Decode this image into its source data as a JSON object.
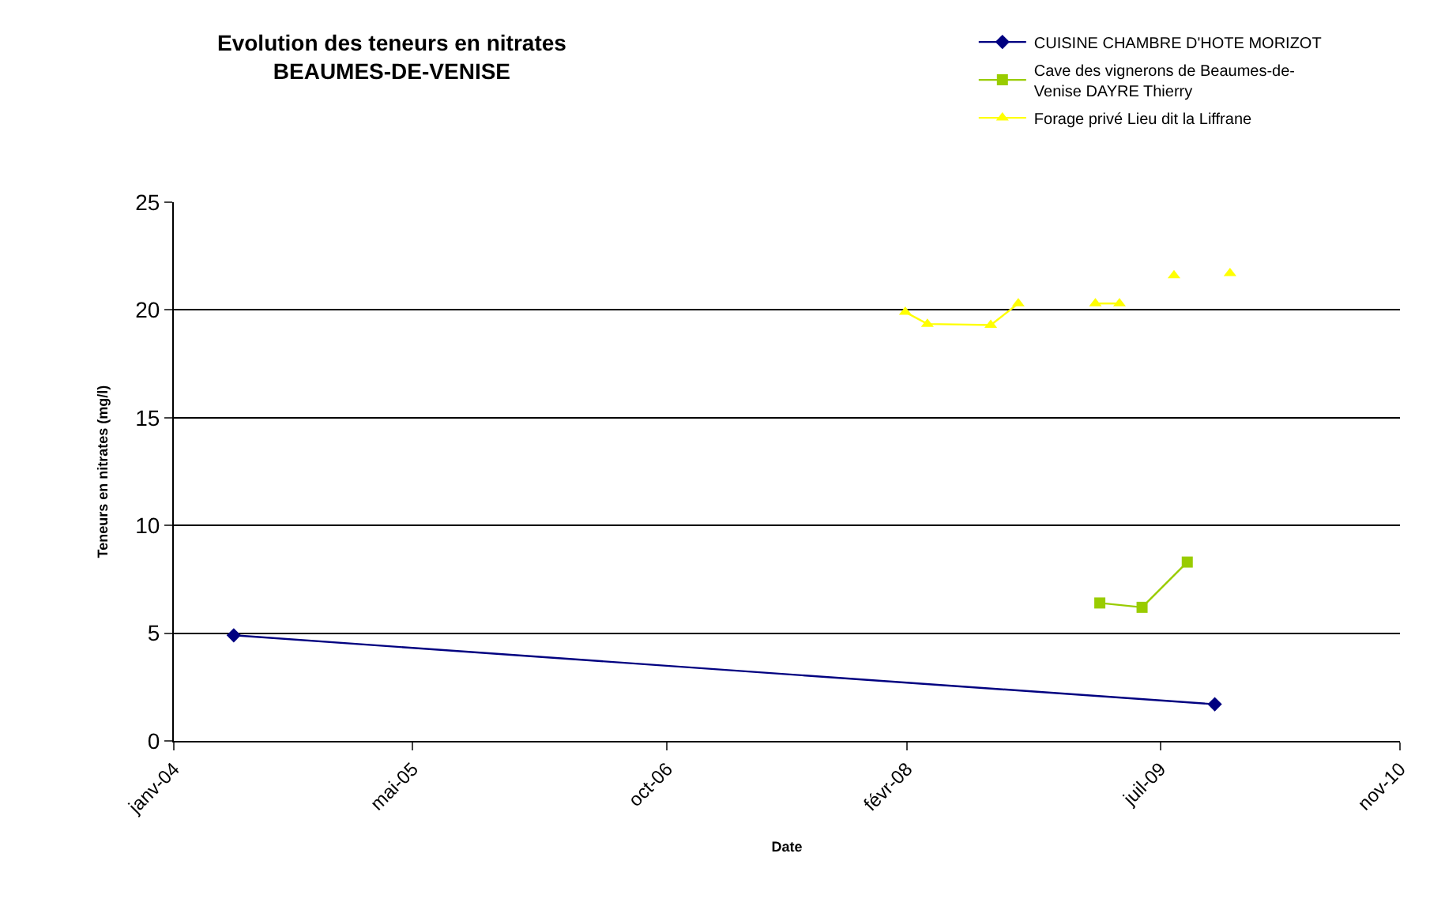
{
  "chart_data": {
    "type": "line",
    "title": "Evolution des teneurs en nitrates\nBEAUMES-DE-VENISE",
    "xlabel": "Date",
    "ylabel": "Teneurs en nitrates (mg/l)",
    "series": [
      {
        "name": "CUISINE CHAMBRE D'HOTE MORIZOT",
        "color": "#000080",
        "marker": "diamond",
        "x": [
          "2004-05-02",
          "2009-10-20"
        ],
        "values": [
          4.9,
          1.7
        ]
      },
      {
        "name": "Cave des vignerons de Beaumes-de-Venise DAYRE Thierry",
        "color": "#99cc00",
        "marker": "square",
        "x": [
          "2009-02-28",
          "2009-05-25",
          "2009-08-25"
        ],
        "values": [
          6.4,
          6.2,
          8.3
        ]
      },
      {
        "name": "Forage privé Lieu dit la Liffrane",
        "color": "#ffff00",
        "marker": "triangle",
        "x": [
          "2008-01-29",
          "2008-03-14",
          "2008-07-21",
          "2008-09-15",
          "2008-12-01",
          "2009-02-19",
          "2009-04-09",
          "2009-06-01",
          "2009-07-29",
          "2009-09-20",
          "2009-11-20"
        ],
        "values": [
          19.9,
          19.35,
          19.3,
          20.3,
          null,
          20.3,
          20.3,
          null,
          21.6,
          null,
          21.7
        ]
      }
    ],
    "xlim": [
      "2004-01-01",
      "2010-11-01"
    ],
    "xticks": [
      {
        "value": "2004-01-01",
        "label": "janv-04"
      },
      {
        "value": "2005-05-01",
        "label": "mai-05"
      },
      {
        "value": "2006-10-01",
        "label": "oct-06"
      },
      {
        "value": "2008-02-01",
        "label": "févr-08"
      },
      {
        "value": "2009-07-01",
        "label": "juil-09"
      },
      {
        "value": "2010-11-01",
        "label": "nov-10"
      }
    ],
    "ylim": [
      0,
      25
    ],
    "yticks": [
      0,
      5,
      10,
      15,
      20,
      25
    ],
    "grid": "y",
    "legend": "top right",
    "line_style": "solid"
  }
}
